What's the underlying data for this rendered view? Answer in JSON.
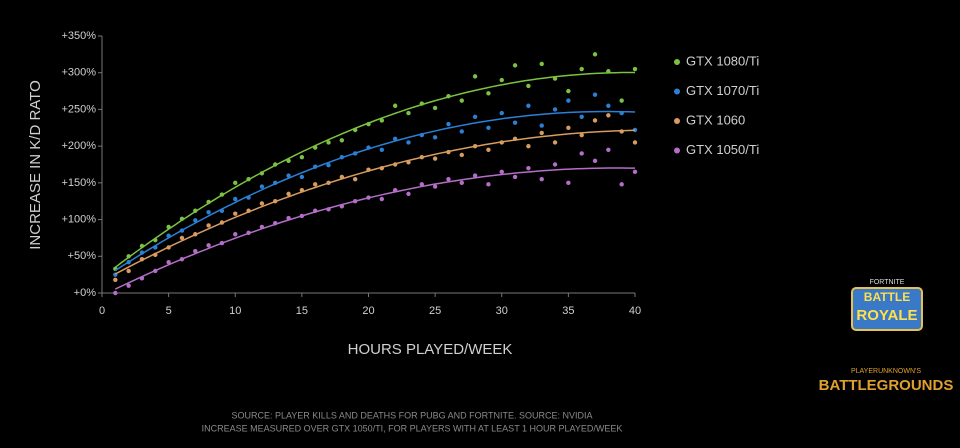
{
  "chart_data": {
    "type": "scatter",
    "xlabel": "HOURS PLAYED/WEEK",
    "ylabel": "INCREASE IN K/D RATO",
    "x": [
      1,
      2,
      3,
      4,
      5,
      6,
      7,
      8,
      9,
      10,
      11,
      12,
      13,
      14,
      15,
      16,
      17,
      18,
      19,
      20,
      21,
      22,
      23,
      24,
      25,
      26,
      27,
      28,
      29,
      30,
      31,
      32,
      33,
      34,
      35,
      36,
      37,
      38,
      39,
      40
    ],
    "xlim": [
      0,
      40
    ],
    "xticks": [
      0,
      5,
      10,
      15,
      20,
      25,
      30,
      35,
      40
    ],
    "ylim": [
      0,
      350
    ],
    "yticks": [
      {
        "value": 0,
        "label": "+0%"
      },
      {
        "value": 50,
        "label": "+50%"
      },
      {
        "value": 100,
        "label": "+100%"
      },
      {
        "value": 150,
        "label": "+150%"
      },
      {
        "value": 200,
        "label": "+200%"
      },
      {
        "value": 250,
        "label": "+250%"
      },
      {
        "value": 300,
        "label": "+300%"
      },
      {
        "value": 350,
        "label": "+350%"
      }
    ],
    "grid": false,
    "trendline": true,
    "legend": "right",
    "series": [
      {
        "name": "GTX 1080/Ti",
        "color": "#7cc242",
        "values": [
          33,
          50,
          64,
          72,
          90,
          101,
          112,
          124,
          134,
          150,
          155,
          163,
          175,
          180,
          185,
          198,
          205,
          208,
          222,
          230,
          235,
          255,
          245,
          258,
          252,
          268,
          262,
          295,
          272,
          290,
          310,
          282,
          312,
          292,
          275,
          305,
          325,
          302,
          262,
          305
        ]
      },
      {
        "name": "GTX 1070/Ti",
        "color": "#2a80d6",
        "values": [
          25,
          42,
          55,
          62,
          78,
          85,
          99,
          110,
          112,
          128,
          130,
          145,
          150,
          160,
          158,
          172,
          174,
          185,
          190,
          198,
          195,
          210,
          205,
          215,
          212,
          230,
          220,
          240,
          225,
          245,
          232,
          255,
          228,
          250,
          262,
          240,
          270,
          255,
          245,
          222
        ]
      },
      {
        "name": "GTX 1060",
        "color": "#d89b60",
        "values": [
          18,
          30,
          46,
          52,
          62,
          75,
          80,
          92,
          96,
          108,
          112,
          122,
          125,
          135,
          140,
          148,
          150,
          158,
          155,
          168,
          170,
          175,
          178,
          185,
          183,
          192,
          188,
          200,
          195,
          205,
          210,
          200,
          218,
          205,
          225,
          215,
          235,
          242,
          220,
          205
        ]
      },
      {
        "name": "GTX 1050/Ti",
        "color": "#b46ec8",
        "values": [
          0,
          10,
          20,
          30,
          42,
          46,
          57,
          65,
          68,
          80,
          82,
          90,
          95,
          102,
          105,
          112,
          114,
          118,
          125,
          130,
          128,
          140,
          135,
          148,
          145,
          155,
          150,
          160,
          148,
          165,
          158,
          170,
          155,
          175,
          150,
          190,
          180,
          195,
          148,
          165
        ]
      }
    ],
    "footnotes": [
      "SOURCE: PLAYER KILLS AND DEATHS FOR PUBG AND FORTNITE. SOURCE: NVIDIA",
      "INCREASE MEASURED OVER GTX 1050/TI, FOR PLAYERS WITH AT LEAST 1 HOUR PLAYED/WEEK"
    ],
    "logos": {
      "fortnite": [
        "FORTNITE",
        "BATTLE",
        "ROYALE"
      ],
      "pubg": [
        "PLAYERUNKNOWN'S",
        "BATTLEGROUNDS"
      ]
    }
  }
}
